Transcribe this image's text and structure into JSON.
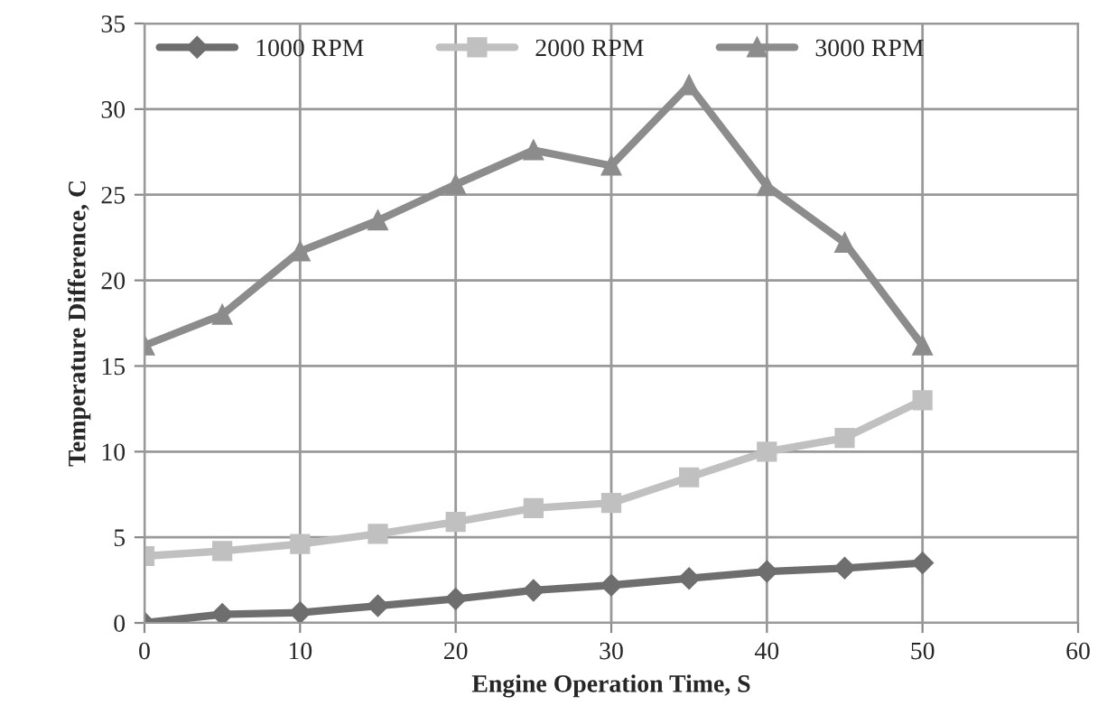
{
  "chart_data": {
    "type": "line",
    "xlabel": "Engine Operation Time, S",
    "ylabel": "Temperature Difference, C",
    "x": [
      0,
      5,
      10,
      15,
      20,
      25,
      30,
      35,
      40,
      45,
      50
    ],
    "series": [
      {
        "name": "1000 RPM",
        "color": "#6e6e6e",
        "marker": "diamond",
        "values": [
          0,
          0.5,
          0.6,
          1.0,
          1.4,
          1.9,
          2.2,
          2.6,
          3.0,
          3.2,
          3.5
        ]
      },
      {
        "name": "2000 RPM",
        "color": "#c0c0c0",
        "marker": "square",
        "values": [
          3.9,
          4.2,
          4.6,
          5.2,
          5.9,
          6.7,
          7.0,
          8.5,
          10.0,
          10.8,
          13.0
        ]
      },
      {
        "name": "3000 RPM",
        "color": "#8c8c8c",
        "marker": "triangle",
        "values": [
          16.2,
          18.0,
          21.7,
          23.5,
          25.6,
          27.6,
          26.7,
          31.4,
          25.5,
          22.2,
          16.2
        ]
      }
    ],
    "xlim": [
      0,
      60
    ],
    "xticks": [
      0,
      10,
      20,
      30,
      40,
      50,
      60
    ],
    "ylim": [
      0,
      35
    ],
    "yticks": [
      0,
      5,
      10,
      15,
      20,
      25,
      30,
      35
    ],
    "grid": true,
    "legend": "top left",
    "line_style": "solid"
  }
}
